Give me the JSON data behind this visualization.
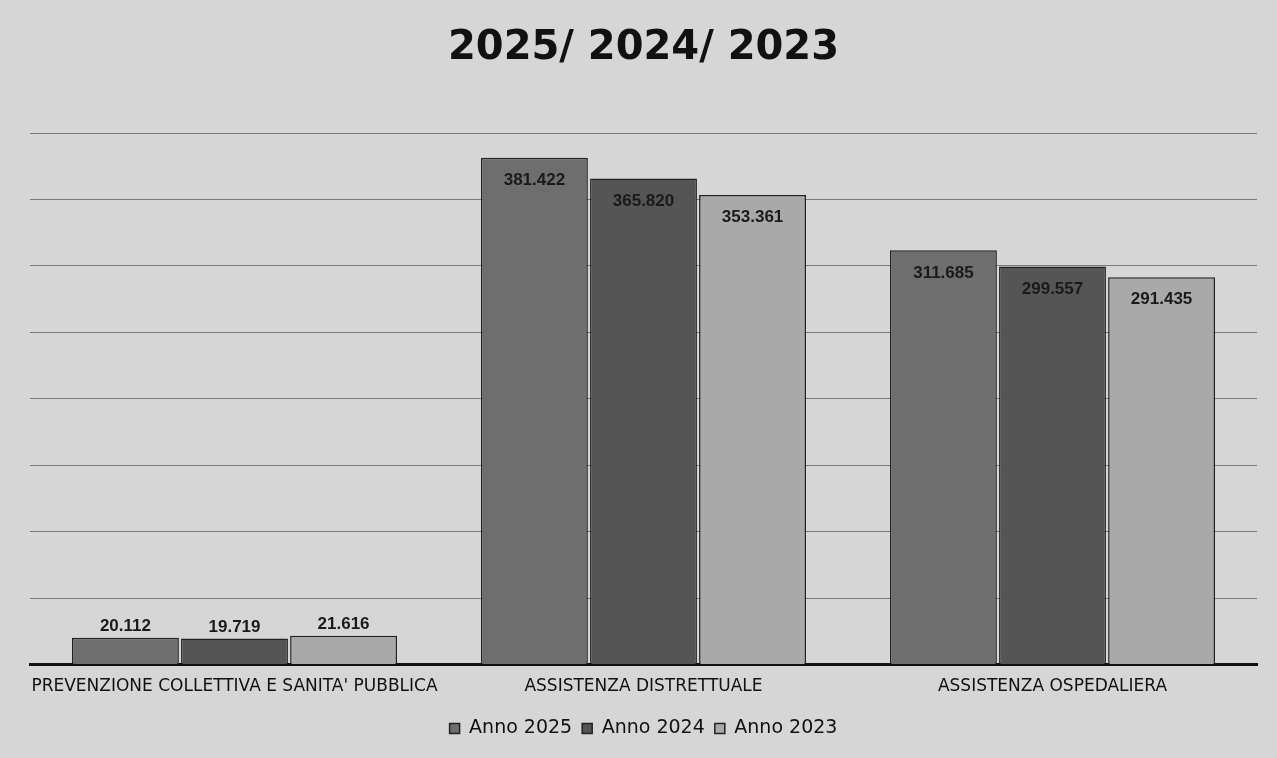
{
  "chart_data": {
    "type": "bar",
    "title": "2025/ 2024/ 2023",
    "categories": [
      "PREVENZIONE COLLETTIVA E SANITA' PUBBLICA",
      "ASSISTENZA DISTRETTUALE",
      "ASSISTENZA OSPEDALIERA"
    ],
    "series": [
      {
        "name": "Anno 2025",
        "color": "#6e6e6e",
        "values": [
          20112,
          381422,
          311685
        ],
        "value_labels": [
          "20.112",
          "381.422",
          "311.685"
        ]
      },
      {
        "name": "Anno 2024",
        "color": "#555555",
        "values": [
          19719,
          365820,
          299557
        ],
        "value_labels": [
          "19.719",
          "365.820",
          "299.557"
        ]
      },
      {
        "name": "Anno 2023",
        "color": "#a9a9a9",
        "values": [
          21616,
          353361,
          291435
        ],
        "value_labels": [
          "21.616",
          "353.361",
          "291.435"
        ]
      }
    ],
    "ylim": [
      0,
      400000
    ],
    "yticks": [
      {
        "value": 0,
        "label": null
      },
      {
        "value": 50000,
        "label": null
      },
      {
        "value": 100000,
        "label": null
      },
      {
        "value": 150000,
        "label": null
      },
      {
        "value": 200000,
        "label": null
      },
      {
        "value": 250000,
        "label": null
      },
      {
        "value": 300000,
        "label": null
      },
      {
        "value": 350000,
        "label": null
      },
      {
        "value": 400000,
        "label": null
      }
    ],
    "grid": "y",
    "legend": "bottom",
    "tick_labels": "x"
  }
}
